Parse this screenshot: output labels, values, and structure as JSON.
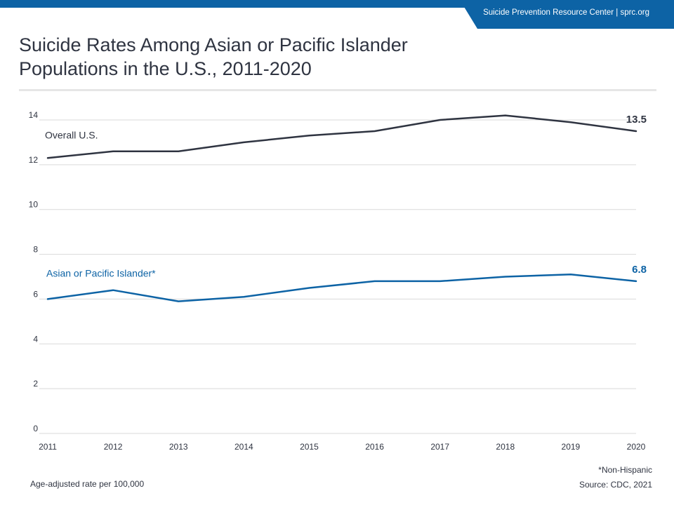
{
  "header": {
    "brand": "Suicide Prevention Resource Center  | sprc.org"
  },
  "title_line1": "Suicide Rates Among Asian or Pacific Islander",
  "title_line2": "Populations in the U.S., 2011-2020",
  "footer": {
    "ylabel_note": "Age-adjusted rate per 100,000",
    "footnote": "*Non-Hispanic",
    "source": "Source: CDC, 2021"
  },
  "colors": {
    "brand_blue": "#0d63a5",
    "overall": "#2f3441",
    "asian_pi": "#0d63a5",
    "grid": "#d9d9d9"
  },
  "chart_data": {
    "type": "line",
    "title": "Suicide Rates Among Asian or Pacific Islander Populations in the U.S., 2011-2020",
    "xlabel": "",
    "ylabel": "Age-adjusted rate per 100,000",
    "x": [
      2011,
      2012,
      2013,
      2014,
      2015,
      2016,
      2017,
      2018,
      2019,
      2020
    ],
    "x_tick_labels": [
      "2011",
      "2012",
      "2013",
      "2014",
      "2015",
      "2016",
      "2017",
      "2018",
      "2019",
      "2020"
    ],
    "ylim": [
      0,
      14
    ],
    "y_ticks": [
      0,
      2,
      4,
      6,
      8,
      10,
      12,
      14
    ],
    "grid": true,
    "series": [
      {
        "name": "Overall U.S.",
        "values": [
          12.3,
          12.6,
          12.6,
          13.0,
          13.3,
          13.5,
          14.0,
          14.2,
          13.9,
          13.5
        ],
        "end_label": "13.5",
        "color": "#2f3441"
      },
      {
        "name": "Asian or Pacific Islander*",
        "values": [
          6.0,
          6.4,
          5.9,
          6.1,
          6.5,
          6.8,
          6.8,
          7.0,
          7.1,
          6.8
        ],
        "end_label": "6.8",
        "color": "#0d63a5"
      }
    ]
  }
}
